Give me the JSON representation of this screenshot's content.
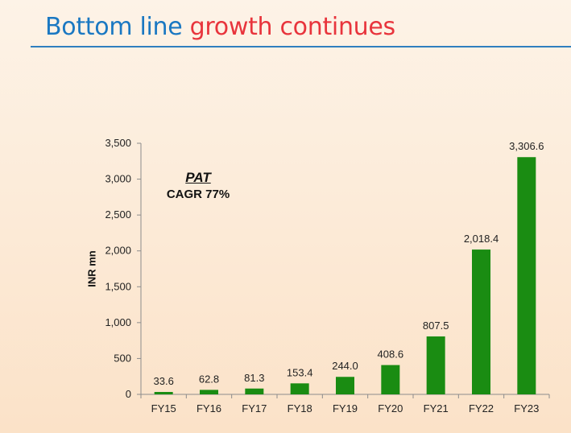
{
  "page": {
    "title_part1": "Bottom line",
    "title_part2": "growth continues"
  },
  "annotation": {
    "title": "PAT",
    "subtitle": "CAGR 77%"
  },
  "colors": {
    "title_blue": "#1a78c2",
    "title_red": "#e8343c",
    "bar": "#1a8c12"
  },
  "chart_data": {
    "type": "bar",
    "categories": [
      "FY15",
      "FY16",
      "FY17",
      "FY18",
      "FY19",
      "FY20",
      "FY21",
      "FY22",
      "FY23"
    ],
    "values": [
      33.6,
      62.8,
      81.3,
      153.4,
      244.0,
      408.6,
      807.5,
      2018.4,
      3306.6
    ],
    "data_labels": [
      "33.6",
      "62.8",
      "81.3",
      "153.4",
      "244.0",
      "408.6",
      "807.5",
      "2,018.4",
      "3,306.6"
    ],
    "ylabel": "INR mn",
    "ylim": [
      0,
      3500
    ],
    "yticks": [
      0,
      500,
      1000,
      1500,
      2000,
      2500,
      3000,
      3500
    ],
    "ytick_labels": [
      "0",
      "500",
      "1,000",
      "1,500",
      "2,000",
      "2,500",
      "3,000",
      "3,500"
    ],
    "grid": false,
    "legend": "none"
  }
}
